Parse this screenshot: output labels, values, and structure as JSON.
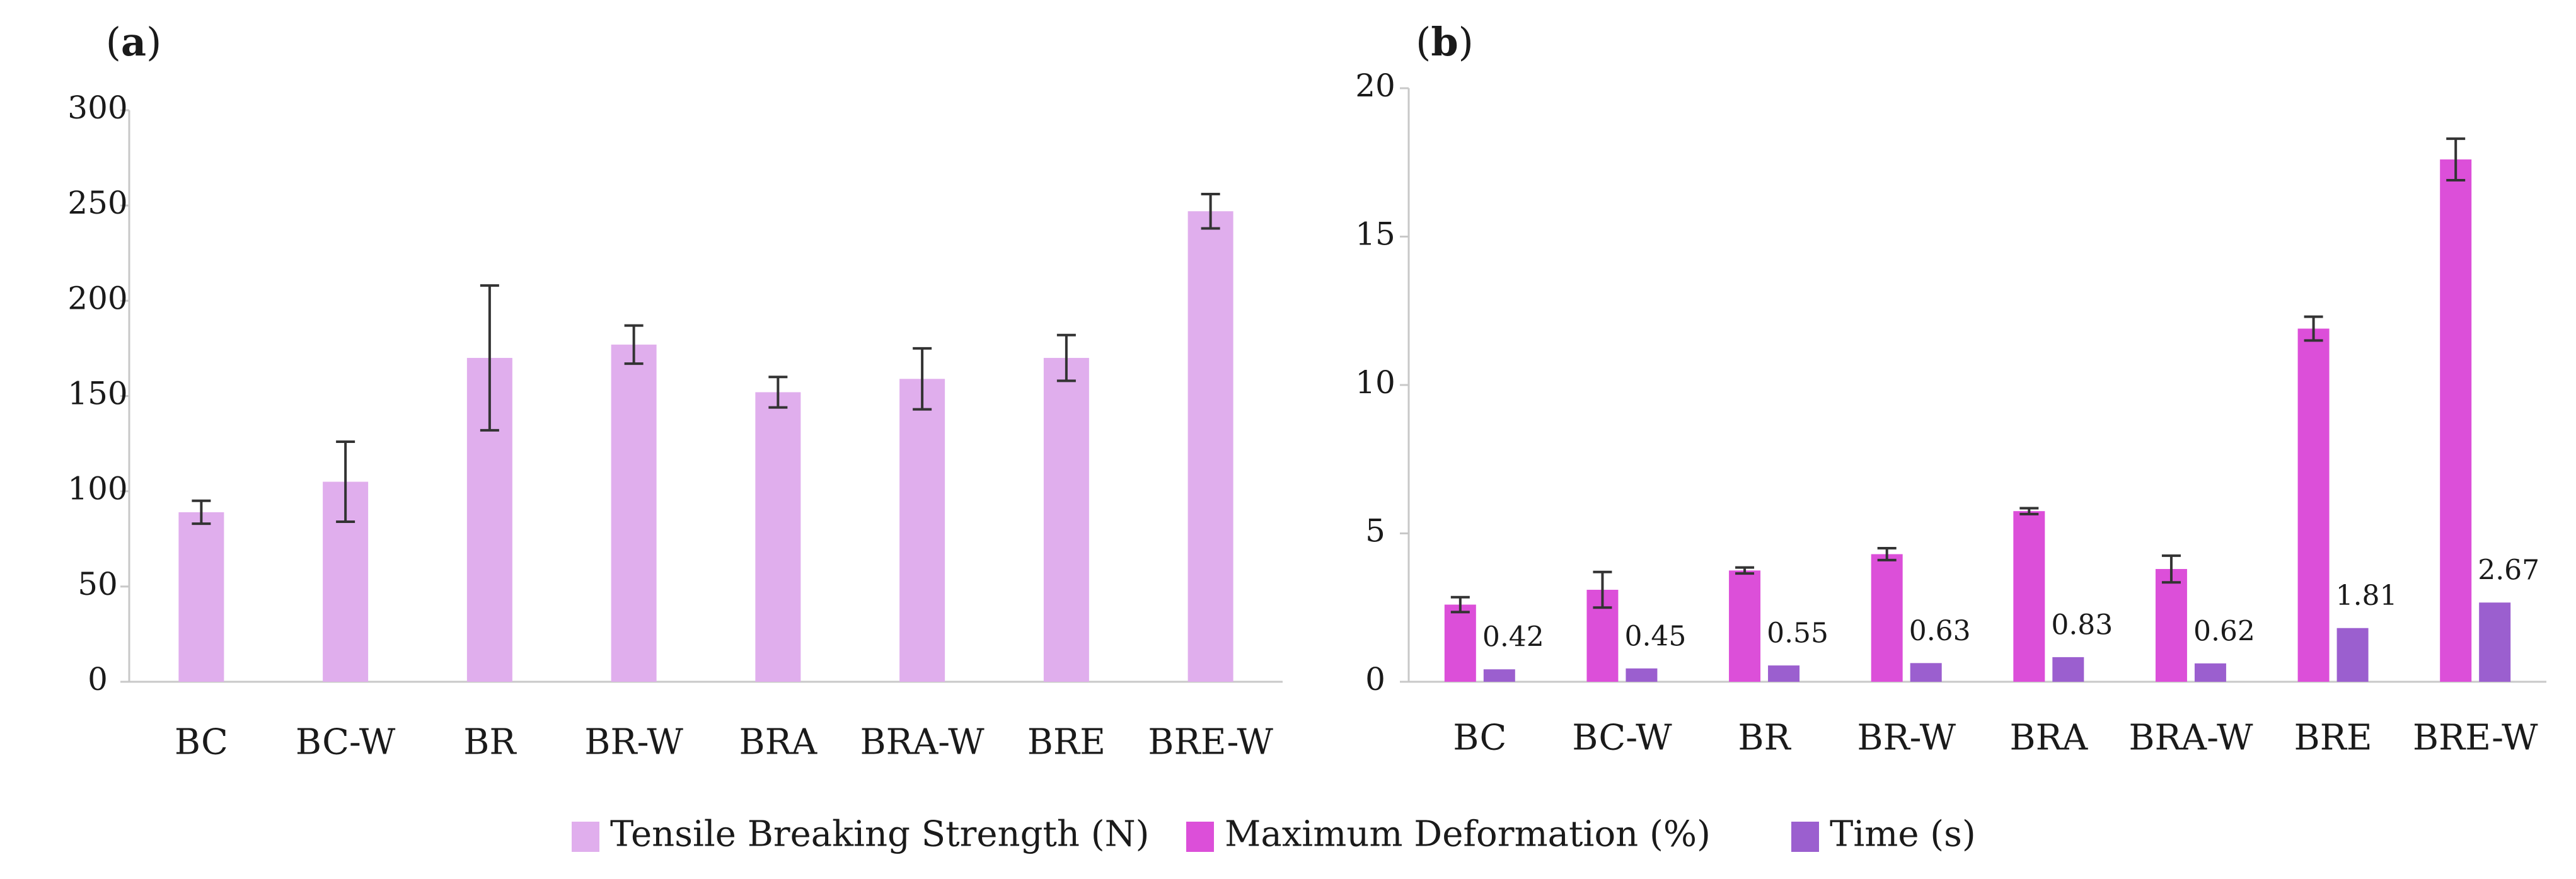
{
  "legend": [
    {
      "label": "Tensile Breaking Strength (N)",
      "color": "#e0aeed"
    },
    {
      "label": "Maximum Deformation (%)",
      "color": "#dc4fd9"
    },
    {
      "label": "Time (s)",
      "color": "#9b5fcf"
    }
  ],
  "chart_data": [
    {
      "type": "bar",
      "panel_label": "(a)",
      "panel_letter": "a",
      "categories": [
        "BC",
        "BC-W",
        "BR",
        "BR-W",
        "BRA",
        "BRA-W",
        "BRE",
        "BRE-W"
      ],
      "series": [
        {
          "name": "Tensile Breaking Strength (N)",
          "color": "#e0aeed",
          "values": [
            89,
            105,
            170,
            177,
            152,
            159,
            170,
            247
          ],
          "error": [
            6,
            21,
            38,
            10,
            8,
            16,
            12,
            9
          ]
        }
      ],
      "ylim": [
        0,
        300
      ],
      "yticks": [
        0,
        50,
        100,
        150,
        200,
        250,
        300
      ],
      "title": "",
      "xlabel": "",
      "ylabel": ""
    },
    {
      "type": "bar",
      "panel_label": "(b)",
      "panel_letter": "b",
      "categories": [
        "BC",
        "BC-W",
        "BR",
        "BR-W",
        "BRA",
        "BRA-W",
        "BRE",
        "BRE-W"
      ],
      "series": [
        {
          "name": "Maximum Deformation (%)",
          "color": "#dc4fd9",
          "values": [
            2.6,
            3.1,
            3.75,
            4.3,
            5.75,
            3.8,
            11.9,
            17.6
          ],
          "error": [
            0.25,
            0.6,
            0.1,
            0.2,
            0.1,
            0.45,
            0.4,
            0.7
          ]
        },
        {
          "name": "Time (s)",
          "color": "#9b5fcf",
          "values": [
            0.42,
            0.45,
            0.55,
            0.63,
            0.83,
            0.62,
            1.81,
            2.67
          ],
          "data_labels": [
            "0.42",
            "0.45",
            "0.55",
            "0.63",
            "0.83",
            "0.62",
            "1.81",
            "2.67"
          ]
        }
      ],
      "ylim": [
        0,
        20
      ],
      "yticks": [
        0,
        5,
        10,
        15,
        20
      ],
      "title": "",
      "xlabel": "",
      "ylabel": ""
    }
  ]
}
